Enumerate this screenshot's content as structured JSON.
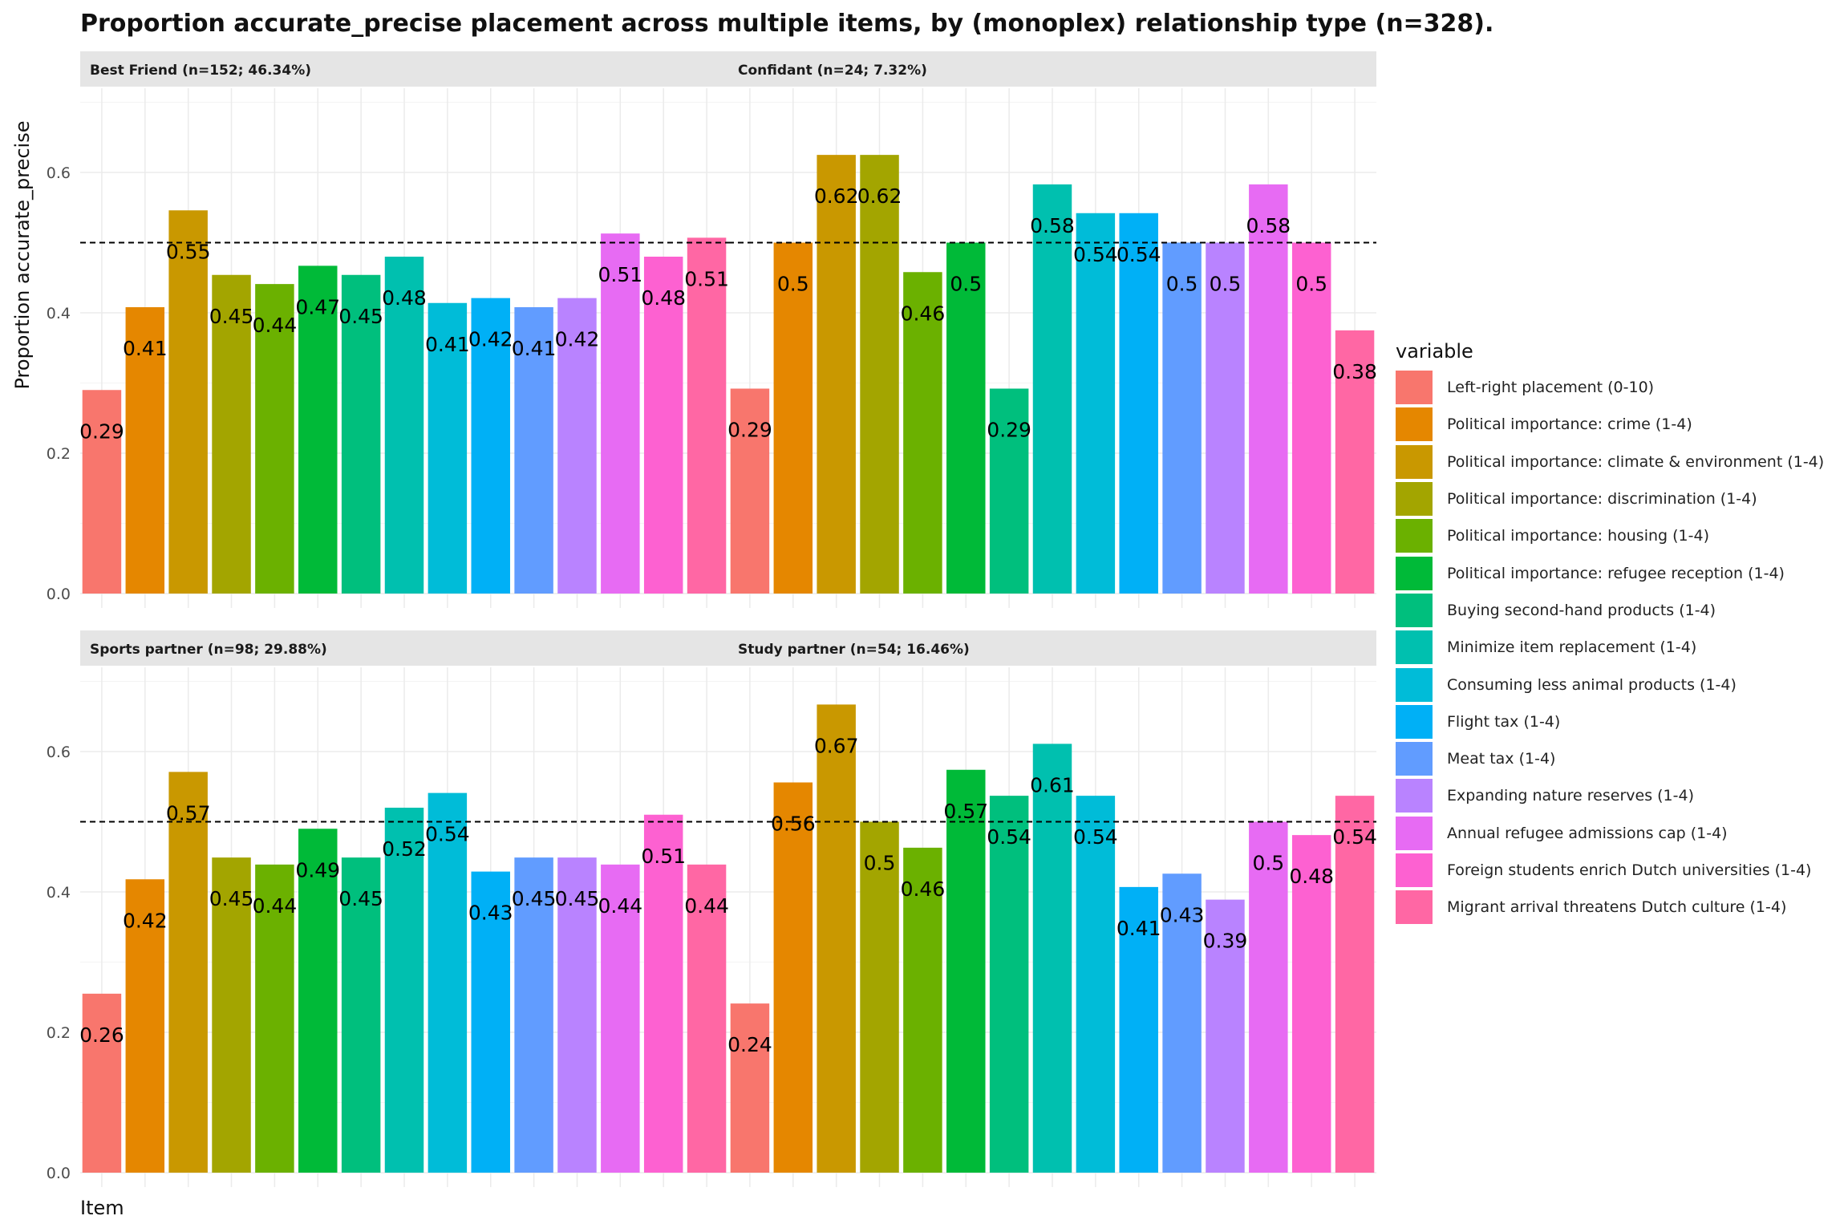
{
  "chart_data": {
    "type": "bar",
    "title": "Proportion accurate_precise placement across multiple items, by (monoplex) relationship type (n=328).",
    "xlabel": "Item",
    "ylabel": "Proportion accurate_precise",
    "ylim": [
      0,
      0.72
    ],
    "y_ticks": [
      "0.0",
      "0.2",
      "0.4",
      "0.6"
    ],
    "y_tick_values": [
      0,
      0.2,
      0.4,
      0.6
    ],
    "reference_line": 0.5,
    "grid": true,
    "legend_position": "right",
    "legend_title": "variable",
    "categories": [
      "Left-right placement (0-10)",
      "Political importance: crime (1-4)",
      "Political importance: climate & environment (1-4)",
      "Political importance: discrimination (1-4)",
      "Political importance: housing (1-4)",
      "Political importance: refugee reception (1-4)",
      "Buying second-hand products (1-4)",
      "Minimize item replacement (1-4)",
      "Consuming less animal products (1-4)",
      "Flight tax (1-4)",
      "Meat tax (1-4)",
      "Expanding nature reserves (1-4)",
      "Annual refugee admissions cap (1-4)",
      "Foreign students enrich Dutch universities (1-4)",
      "Migrant arrival threatens Dutch culture (1-4)"
    ],
    "colors": [
      "#F8766D",
      "#E58700",
      "#C99800",
      "#A3A500",
      "#6BB100",
      "#00BA38",
      "#00BF7D",
      "#00C0AF",
      "#00BCD8",
      "#00B0F6",
      "#619CFF",
      "#B983FF",
      "#E76BF3",
      "#FD61D1",
      "#FF67A4"
    ],
    "panels": [
      {
        "name": "Best Friend (n=152; 46.34%)",
        "values": [
          0.29,
          0.408,
          0.546,
          0.454,
          0.441,
          0.467,
          0.454,
          0.48,
          0.414,
          0.421,
          0.408,
          0.421,
          0.513,
          0.48,
          0.507
        ],
        "labels": [
          "0.29",
          "0.41",
          "0.55",
          "0.45",
          "0.44",
          "0.47",
          "0.45",
          "0.48",
          "0.41",
          "0.42",
          "0.41",
          "0.42",
          "0.51",
          "0.48",
          "0.51"
        ]
      },
      {
        "name": "Confidant (n=24; 7.32%)",
        "values": [
          0.292,
          0.5,
          0.625,
          0.625,
          0.458,
          0.5,
          0.292,
          0.583,
          0.542,
          0.542,
          0.5,
          0.5,
          0.583,
          0.5,
          0.375
        ],
        "labels": [
          "0.29",
          "0.5",
          "0.62",
          "0.62",
          "0.46",
          "0.5",
          "0.29",
          "0.58",
          "0.54",
          "0.54",
          "0.5",
          "0.5",
          "0.58",
          "0.5",
          "0.38"
        ]
      },
      {
        "name": "Sports partner (n=98; 29.88%)",
        "values": [
          0.255,
          0.418,
          0.571,
          0.449,
          0.439,
          0.49,
          0.449,
          0.52,
          0.541,
          0.429,
          0.449,
          0.449,
          0.439,
          0.51,
          0.439
        ],
        "labels": [
          "0.26",
          "0.42",
          "0.57",
          "0.45",
          "0.44",
          "0.49",
          "0.45",
          "0.52",
          "0.54",
          "0.43",
          "0.45",
          "0.45",
          "0.44",
          "0.51",
          "0.44"
        ]
      },
      {
        "name": "Study partner (n=54; 16.46%)",
        "values": [
          0.241,
          0.556,
          0.667,
          0.5,
          0.463,
          0.574,
          0.537,
          0.611,
          0.537,
          0.407,
          0.426,
          0.389,
          0.5,
          0.481,
          0.537
        ],
        "labels": [
          "0.24",
          "0.56",
          "0.67",
          "0.5",
          "0.46",
          "0.57",
          "0.54",
          "0.61",
          "0.54",
          "0.41",
          "0.43",
          "0.39",
          "0.5",
          "0.48",
          "0.54"
        ]
      }
    ]
  }
}
